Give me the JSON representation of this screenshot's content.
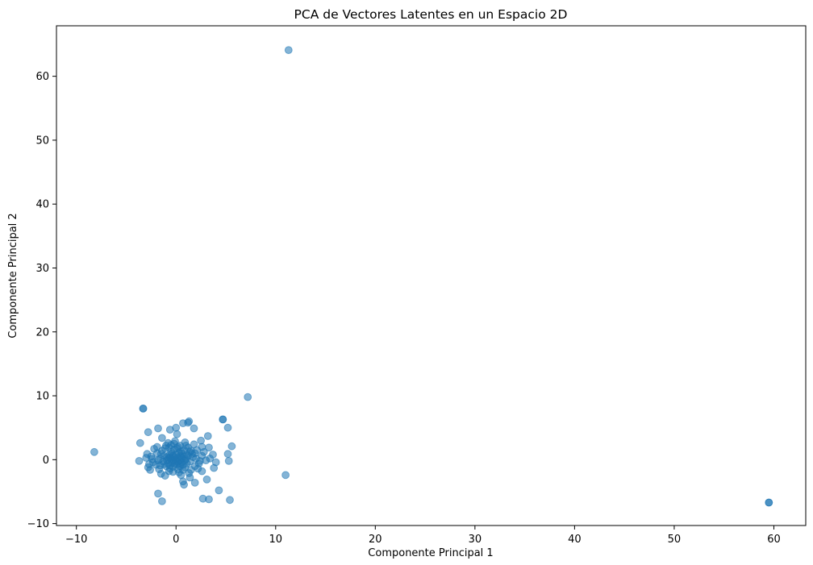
{
  "chart_data": {
    "type": "scatter",
    "title": "PCA de Vectores Latentes en un Espacio 2D",
    "xlabel": "Componente Principal 1",
    "ylabel": "Componente Principal 2",
    "xlim": [
      -12,
      63.2
    ],
    "ylim": [
      -10.3,
      67.9
    ],
    "xticks": [
      -10,
      0,
      10,
      20,
      30,
      40,
      50,
      60
    ],
    "yticks": [
      -10,
      0,
      10,
      20,
      30,
      40,
      50,
      60
    ],
    "grid": false,
    "legend": "none",
    "marker_color": "#1f77b4",
    "marker_alpha": 0.55,
    "series": [
      {
        "points": [
          [
            11.3,
            64.1
          ],
          [
            59.5,
            -6.7
          ],
          [
            59.5,
            -6.7
          ],
          [
            7.2,
            9.8
          ],
          [
            -3.3,
            8.0
          ],
          [
            -3.3,
            8.0
          ],
          [
            -8.2,
            1.2
          ],
          [
            11.0,
            -2.4
          ],
          [
            4.7,
            6.3
          ],
          [
            4.7,
            6.3
          ],
          [
            5.2,
            5.0
          ],
          [
            5.6,
            2.1
          ],
          [
            1.3,
            6.0
          ],
          [
            1.2,
            5.8
          ],
          [
            -3.6,
            2.6
          ],
          [
            -3.7,
            -0.2
          ],
          [
            -2.8,
            4.3
          ],
          [
            -1.8,
            4.9
          ],
          [
            -1.4,
            3.4
          ],
          [
            -0.6,
            4.7
          ],
          [
            0.0,
            5.0
          ],
          [
            0.1,
            4.0
          ],
          [
            0.7,
            5.7
          ],
          [
            1.8,
            4.9
          ],
          [
            2.5,
            3.0
          ],
          [
            3.2,
            3.7
          ],
          [
            3.3,
            1.9
          ],
          [
            3.7,
            0.8
          ],
          [
            4.0,
            -0.4
          ],
          [
            5.3,
            -0.2
          ],
          [
            5.2,
            0.9
          ],
          [
            3.8,
            -1.3
          ],
          [
            2.6,
            -1.8
          ],
          [
            1.9,
            -3.6
          ],
          [
            1.4,
            -2.8
          ],
          [
            0.8,
            -3.9
          ],
          [
            0.7,
            -3.4
          ],
          [
            3.1,
            -3.1
          ],
          [
            -1.8,
            -5.3
          ],
          [
            -1.4,
            -6.5
          ],
          [
            2.7,
            -6.1
          ],
          [
            3.3,
            -6.2
          ],
          [
            4.3,
            -4.8
          ],
          [
            5.4,
            -6.3
          ],
          [
            -2.6,
            -1.6
          ],
          [
            -2.9,
            0.9
          ],
          [
            -0.2,
            2.5
          ],
          [
            0.4,
            2.2
          ],
          [
            1.5,
            1.4
          ],
          [
            2.1,
            1.5
          ],
          [
            2.6,
            0.6
          ],
          [
            1.9,
            -1.0
          ],
          [
            -1.5,
            -2.2
          ],
          [
            -0.7,
            -1.8
          ],
          [
            0.3,
            -2.0
          ],
          [
            -1.1,
            1.8
          ],
          [
            -0.4,
            0.9
          ],
          [
            0.2,
            0.3
          ],
          [
            0.6,
            -0.4
          ],
          [
            -0.8,
            -0.6
          ],
          [
            1.1,
            0.8
          ],
          [
            -1.6,
            0.2
          ],
          [
            0.9,
            -1.2
          ],
          [
            -0.3,
            -1.1
          ],
          [
            1.4,
            -0.3
          ],
          [
            -2.0,
            -0.8
          ],
          [
            0.5,
            1.3
          ],
          [
            -0.9,
            0.4
          ],
          [
            0.0,
            -0.2
          ],
          [
            -0.5,
            0.1
          ],
          [
            0.4,
            0.6
          ],
          [
            1.0,
            0.1
          ],
          [
            -1.3,
            -0.3
          ],
          [
            0.7,
            -0.8
          ],
          [
            -0.2,
            1.6
          ],
          [
            1.7,
            0.4
          ],
          [
            -1.9,
            1.0
          ],
          [
            -2.3,
            -0.4
          ],
          [
            2.3,
            -0.6
          ],
          [
            0.2,
            -1.5
          ],
          [
            -0.6,
            -1.4
          ],
          [
            1.2,
            1.9
          ],
          [
            -1.0,
            2.2
          ],
          [
            -0.1,
            0.0
          ],
          [
            0.3,
            -0.6
          ],
          [
            -0.7,
            0.7
          ],
          [
            0.8,
            0.5
          ],
          [
            -0.4,
            -0.5
          ],
          [
            0.6,
            1.0
          ],
          [
            -1.2,
            0.6
          ],
          [
            1.5,
            -1.6
          ],
          [
            -2.5,
            0.5
          ],
          [
            2.8,
            1.2
          ],
          [
            -1.7,
            -1.5
          ],
          [
            0.1,
            1.8
          ],
          [
            -0.3,
            -1.9
          ],
          [
            3.0,
            -0.1
          ],
          [
            -2.8,
            -1.2
          ],
          [
            1.8,
            2.4
          ],
          [
            -0.8,
            2.6
          ],
          [
            0.5,
            -2.4
          ],
          [
            -1.4,
            1.4
          ],
          [
            2.2,
            -1.4
          ],
          [
            -0.1,
            2.9
          ],
          [
            0.9,
            2.7
          ],
          [
            -2.2,
            1.7
          ],
          [
            1.3,
            -2.1
          ],
          [
            -1.1,
            -2.5
          ],
          [
            0.0,
            0.8
          ],
          [
            -0.6,
            -0.9
          ],
          [
            0.4,
            -1.0
          ],
          [
            0.8,
            1.5
          ],
          [
            -0.2,
            0.4
          ],
          [
            1.6,
            0.9
          ],
          [
            -1.5,
            0.9
          ],
          [
            0.2,
            -0.3
          ],
          [
            -0.9,
            -0.1
          ],
          [
            1.1,
            -0.6
          ],
          [
            -0.5,
            1.2
          ],
          [
            0.6,
            0.2
          ],
          [
            -1.8,
            -0.1
          ],
          [
            2.0,
            0.2
          ],
          [
            -0.4,
            -0.2
          ],
          [
            0.3,
            1.1
          ],
          [
            -1.0,
            -1.0
          ],
          [
            1.4,
            1.2
          ],
          [
            -2.4,
            0.1
          ],
          [
            2.4,
            -0.2
          ],
          [
            -0.7,
            1.9
          ],
          [
            0.7,
            -1.6
          ],
          [
            -1.6,
            -0.9
          ],
          [
            1.9,
            1.0
          ],
          [
            0.1,
            -0.8
          ],
          [
            -0.3,
            0.6
          ],
          [
            0.5,
            0.4
          ],
          [
            -1.2,
            -0.7
          ],
          [
            0.9,
            -0.1
          ],
          [
            -0.8,
            0.2
          ],
          [
            1.2,
            0.6
          ],
          [
            -0.1,
            -0.6
          ],
          [
            0.4,
            -0.1
          ],
          [
            -0.6,
            0.3
          ],
          [
            2.6,
            2.0
          ],
          [
            -3.0,
            0.3
          ],
          [
            3.4,
            0.2
          ],
          [
            -2.7,
            -0.7
          ],
          [
            1.0,
            2.2
          ],
          [
            -0.5,
            2.3
          ],
          [
            0.2,
            2.0
          ],
          [
            -1.9,
            2.0
          ]
        ]
      }
    ]
  }
}
